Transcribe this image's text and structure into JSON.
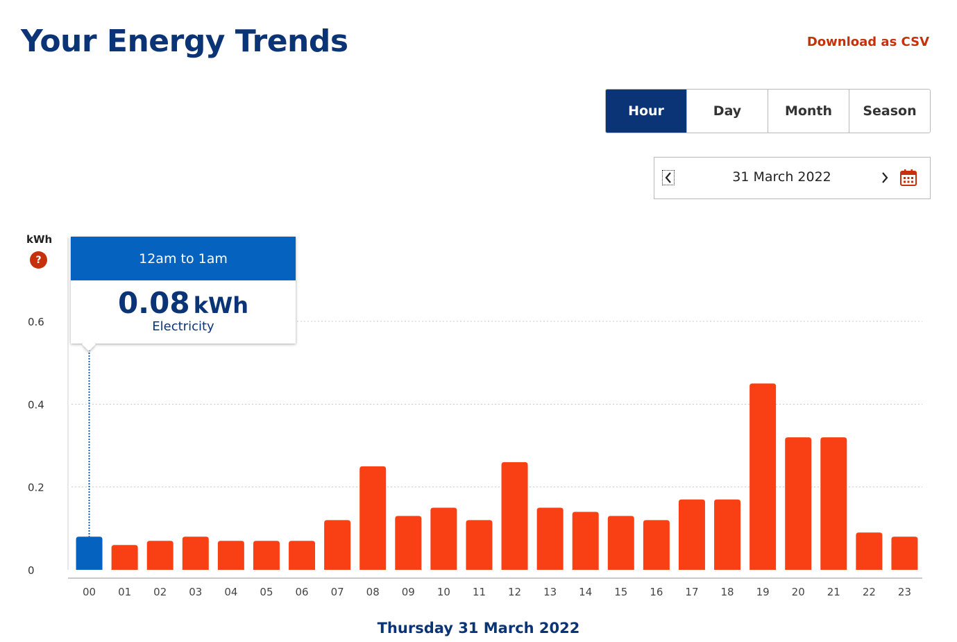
{
  "header": {
    "title": "Your Energy Trends",
    "download_label": "Download as CSV"
  },
  "period_tabs": [
    {
      "label": "Hour",
      "active": true
    },
    {
      "label": "Day",
      "active": false
    },
    {
      "label": "Month",
      "active": false
    },
    {
      "label": "Season",
      "active": false
    }
  ],
  "date_nav": {
    "current_date": "31 March 2022",
    "prev_icon": "chevron-left-icon",
    "next_icon": "chevron-right-icon",
    "calendar_icon": "calendar-icon"
  },
  "help": {
    "unit_label": "kWh",
    "icon_text": "?"
  },
  "tooltip": {
    "heading": "12am to 1am",
    "value": "0.08",
    "unit": "kWh",
    "series": "Electricity"
  },
  "caption": "Thursday 31 March 2022",
  "colors": {
    "bar": "#f84014",
    "bar_selected": "#0563bf",
    "brand": "#0b3476",
    "accent": "#c6310c"
  },
  "chart_data": {
    "type": "bar",
    "categories": [
      "00",
      "01",
      "02",
      "03",
      "04",
      "05",
      "06",
      "07",
      "08",
      "09",
      "10",
      "11",
      "12",
      "13",
      "14",
      "15",
      "16",
      "17",
      "18",
      "19",
      "20",
      "21",
      "22",
      "23"
    ],
    "values": [
      0.08,
      0.06,
      0.07,
      0.08,
      0.07,
      0.07,
      0.07,
      0.12,
      0.25,
      0.13,
      0.15,
      0.12,
      0.26,
      0.15,
      0.14,
      0.13,
      0.12,
      0.17,
      0.17,
      0.45,
      0.32,
      0.32,
      0.09,
      0.08
    ],
    "selected_index": 0,
    "ylabel": "kWh",
    "ylim": [
      0,
      0.6
    ],
    "yticks": [
      "0",
      "0.2",
      "0.4",
      "0.6"
    ],
    "ytick_values": [
      0,
      0.2,
      0.4,
      0.6
    ],
    "grid": true
  }
}
